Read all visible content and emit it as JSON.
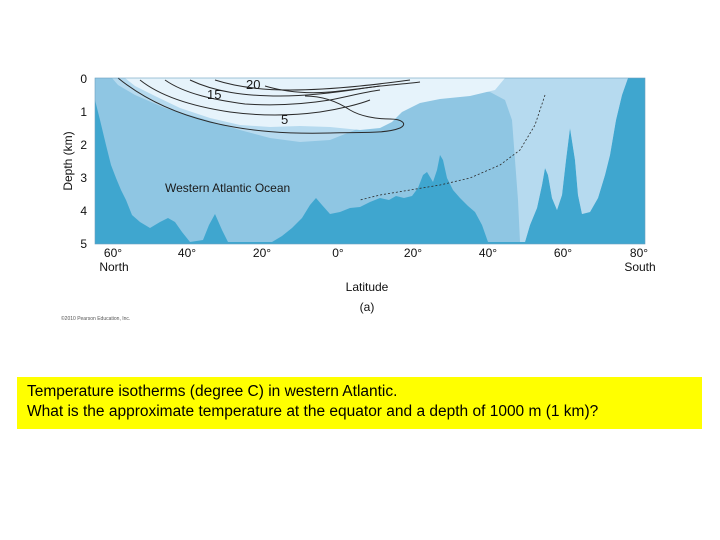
{
  "figure": {
    "y_axis_label": "Depth (km)",
    "depth_ticks": [
      "0",
      "1",
      "2",
      "3",
      "4",
      "5"
    ],
    "latitude_ticks": [
      "60°",
      "40°",
      "20°",
      "0°",
      "20°",
      "40°",
      "60°",
      "80°"
    ],
    "north_label": "North",
    "south_label": "South",
    "x_axis_label": "Latitude",
    "panel_label": "(a)",
    "region_label": "Western Atlantic Ocean",
    "isotherm_labels": [
      "20",
      "15",
      "5"
    ],
    "copyright": "©2010 Pearson Education, Inc.",
    "colors": {
      "seafloor": "#3fa6cf",
      "deep_water": "#8fc6e3",
      "intermediate_water": "#b6daef",
      "surface_water": "#e6f3fb",
      "isotherm_line": "#2b2b2b"
    }
  },
  "caption": {
    "line1": "Temperature isotherms (degree C) in western Atlantic.",
    "line2": "What is the approximate temperature at the equator and a depth of 1000 m (1 km)?"
  }
}
